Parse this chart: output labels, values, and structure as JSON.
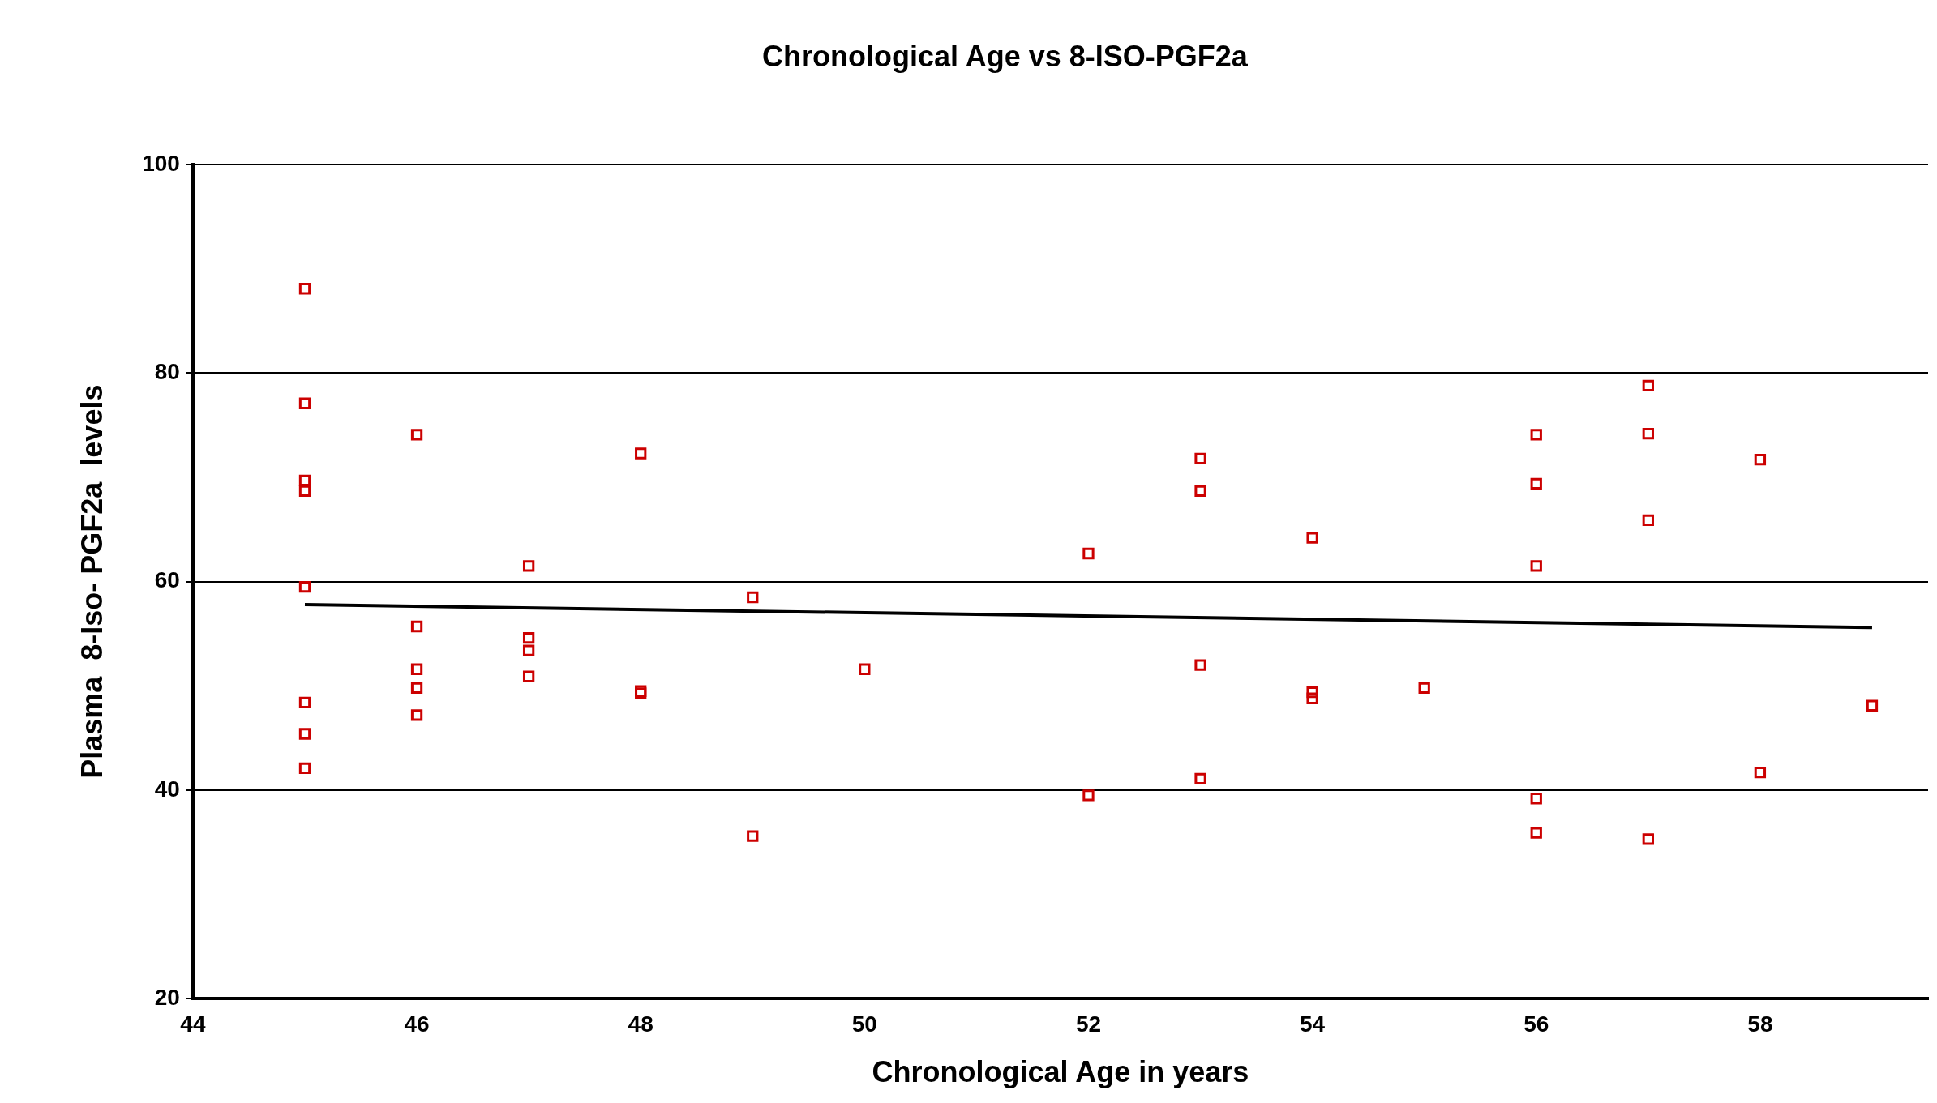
{
  "chart_data": {
    "type": "scatter",
    "title": "Chronological Age vs 8-ISO-PGF2a",
    "xlabel": "Chronological Age in years",
    "ylabel": "Plasma  8-Iso- PGF2a  levels",
    "xlim": [
      44,
      59.5
    ],
    "xticks": [
      44,
      46,
      48,
      50,
      52,
      54,
      56,
      58
    ],
    "ylim": [
      20,
      100
    ],
    "yticks": [
      20,
      40,
      60,
      80,
      100
    ],
    "grid": "y",
    "legend": false,
    "marker": "square",
    "series": [
      {
        "color": "#cc0000",
        "x": [
          45,
          45,
          45,
          45,
          45,
          45,
          45,
          45,
          46,
          46,
          46,
          46,
          46,
          47,
          47,
          47,
          47,
          48,
          48,
          48,
          49,
          49,
          50,
          52,
          52,
          53,
          53,
          53,
          53,
          54,
          54,
          54,
          55,
          56,
          56,
          56,
          56,
          56,
          57,
          57,
          57,
          57,
          58,
          58,
          59
        ],
        "values": [
          88.1,
          77.1,
          69.7,
          68.7,
          59.5,
          48.4,
          45.4,
          42.1,
          74.1,
          55.7,
          51.6,
          49.8,
          47.2,
          61.5,
          54.6,
          53.4,
          50.9,
          72.3,
          49.5,
          49.3,
          58.5,
          35.6,
          51.6,
          62.7,
          39.5,
          71.8,
          68.7,
          52.0,
          41.1,
          64.2,
          49.4,
          48.8,
          49.8,
          74.1,
          69.4,
          61.5,
          39.2,
          35.9,
          78.8,
          74.2,
          65.9,
          35.3,
          71.7,
          41.7,
          48.1
        ]
      },
      {
        "type": "line",
        "color": "#000000",
        "marker": "none",
        "x": [
          45,
          59
        ],
        "values": [
          57.8,
          55.6
        ]
      }
    ]
  }
}
